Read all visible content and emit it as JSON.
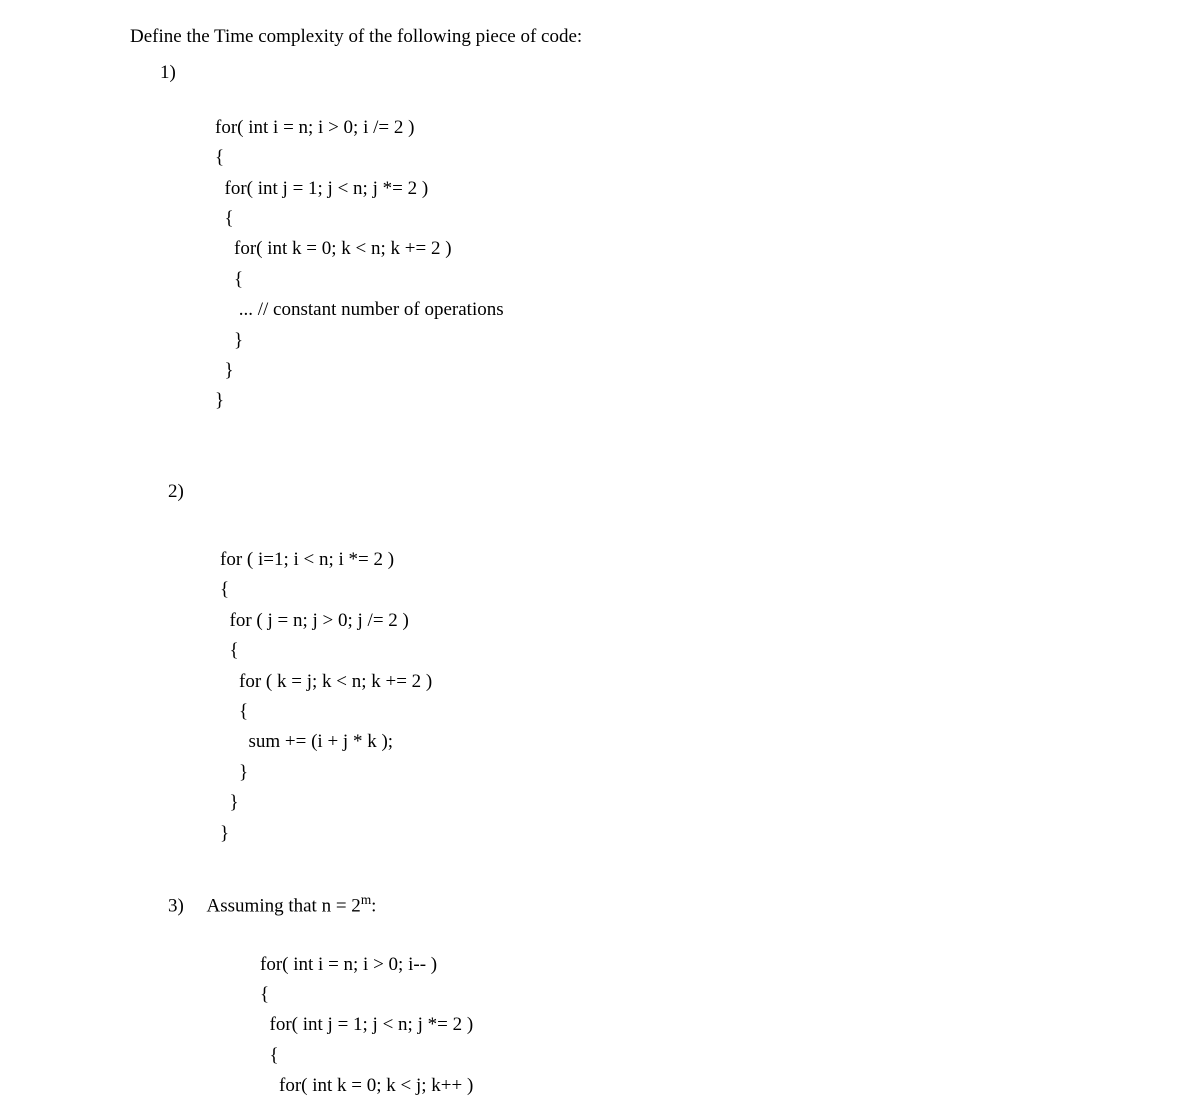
{
  "document": {
    "font_family": "Times New Roman",
    "font_size_pt": 14,
    "background_color": "#ffffff",
    "text_color": "#000000"
  },
  "header": {
    "text": "Define the Time complexity of the following piece of code:"
  },
  "problems": [
    {
      "number": "1)",
      "code_lines": [
        "for( int i = n; i > 0; i /= 2 )",
        "{",
        "  for( int j = 1; j < n; j *= 2 )",
        "  {",
        "    for( int k = 0; k < n; k += 2 )",
        "    {",
        "     ... // constant number of operations",
        "    }",
        "  }",
        "}"
      ]
    },
    {
      "number": "2)",
      "code_lines": [
        "for ( i=1; i < n; i *= 2 )",
        "{",
        "  for ( j = n; j > 0; j /= 2 )",
        "  {",
        "    for ( k = j; k < n; k += 2 )",
        "    {",
        "      sum += (i + j * k );",
        "    }",
        "  }",
        "}"
      ]
    },
    {
      "number": "3)",
      "intro_prefix": "Assuming that n = 2",
      "intro_superscript": "m",
      "intro_suffix": ":",
      "code_lines": [
        "for( int i = n; i > 0; i-- )",
        "{",
        "  for( int j = 1; j < n; j *= 2 )",
        "  {",
        "    for( int k = 0; k < j; k++ )"
      ]
    }
  ]
}
